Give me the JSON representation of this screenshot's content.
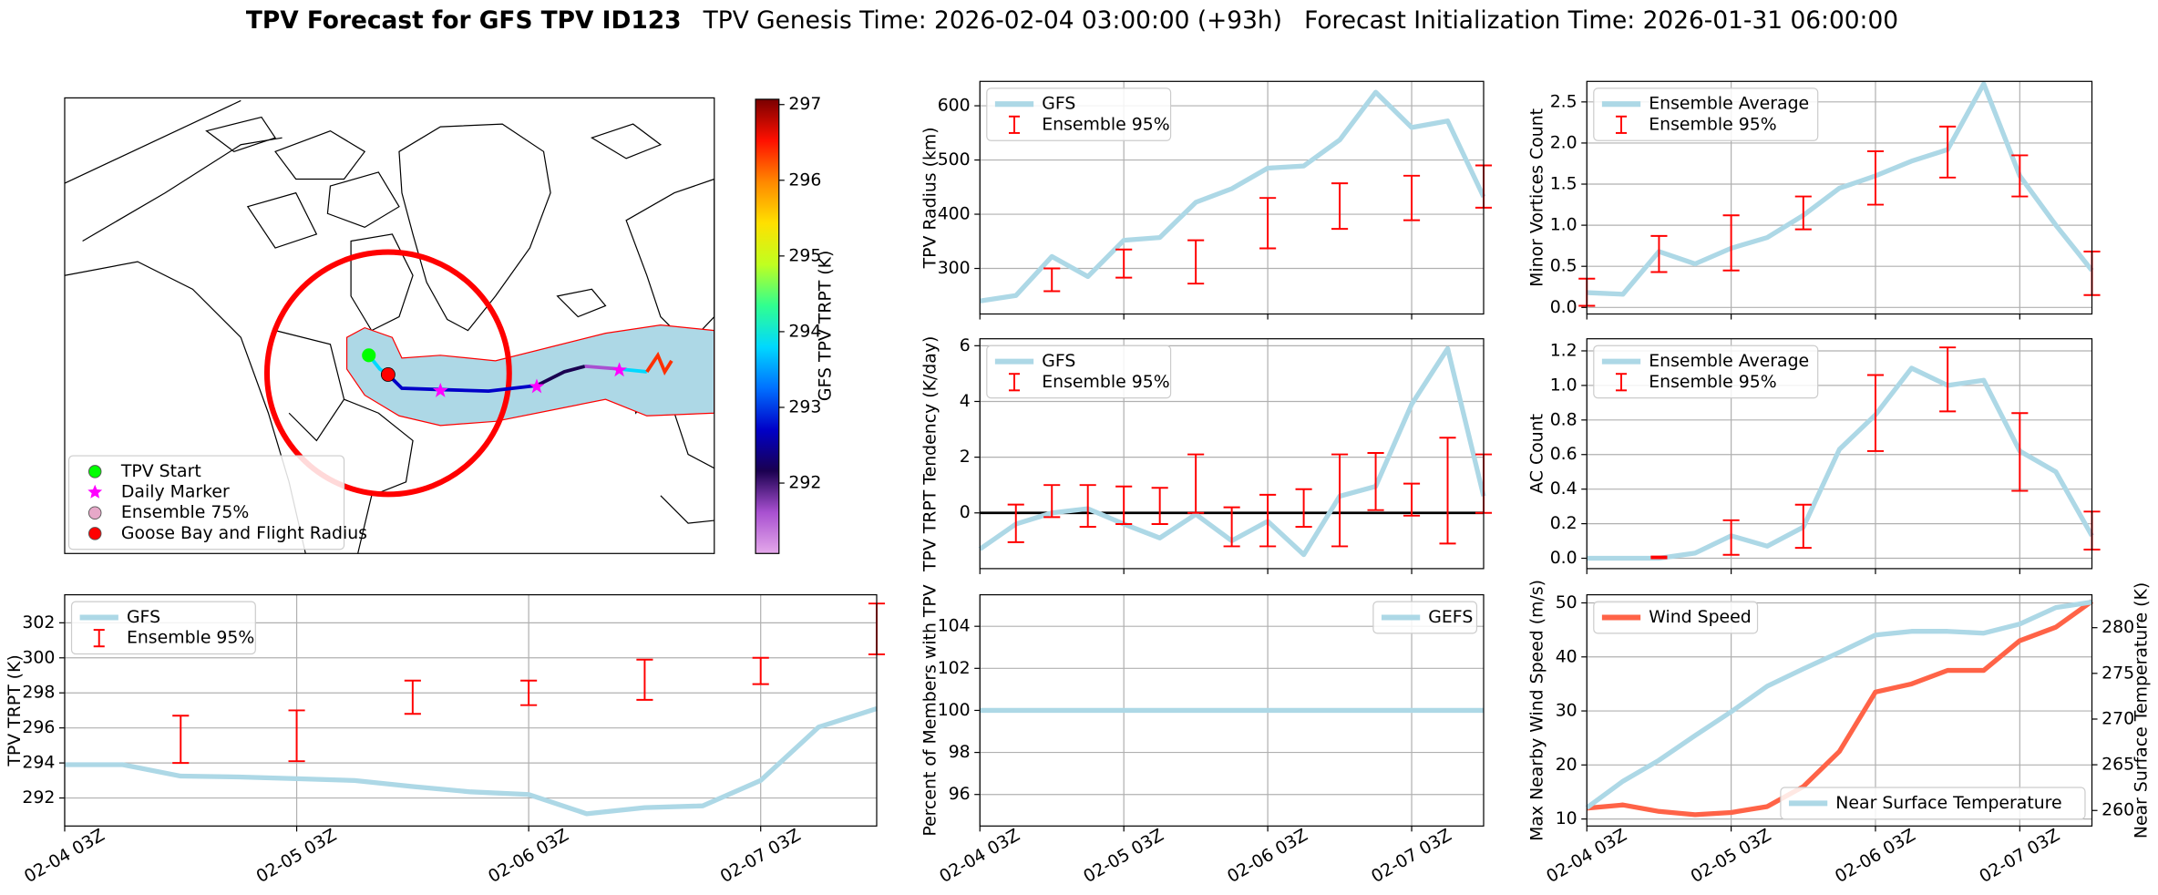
{
  "suptitle": {
    "title": "TPV Forecast for GFS TPV ID123",
    "genesis": "TPV Genesis Time: 2026-02-04 03:00:00 (+93h)",
    "init": "Forecast Initialization Time: 2026-01-31 06:00:00"
  },
  "chart_data": [
    {
      "type": "map",
      "legend": "lower left",
      "legend_entries": [
        {
          "label": "TPV Start",
          "color": "#00ff00",
          "marker": "o"
        },
        {
          "label": "Daily Marker",
          "color": "#ff00ff",
          "marker": "*"
        },
        {
          "label": "Ensemble 75%",
          "color": "#e6a8c8",
          "marker": "o"
        },
        {
          "label": "Goose Bay and Flight Radius",
          "color": "#ff0000",
          "marker": "o"
        }
      ],
      "colorbar": {
        "label": "GFS TPV TRPT (K)",
        "lim": [
          291.07,
          297.07
        ],
        "ticks": [
          292,
          293,
          294,
          295,
          296,
          297
        ],
        "colors": [
          "#e4a8ea",
          "#a850d0",
          "#1a0050",
          "#0000c8",
          "#0070ff",
          "#00d8ff",
          "#30ff90",
          "#c0ff20",
          "#ffe000",
          "#ff8800",
          "#ff1000",
          "#7a0000"
        ]
      }
    },
    {
      "type": "line",
      "ylabel": "TPV TRPT (K)",
      "categories": [
        "02-04 03Z",
        null,
        null,
        null,
        "02-05 03Z",
        null,
        null,
        null,
        "02-06 03Z",
        null,
        null,
        null,
        "02-07 03Z",
        null,
        null
      ],
      "series": [
        {
          "name": "GFS",
          "color": "#add8e6",
          "values": [
            293.9,
            293.9,
            293.25,
            293.2,
            293.1,
            293.0,
            292.65,
            292.35,
            292.2,
            291.1,
            291.45,
            291.55,
            293.0,
            296.05,
            297.1
          ]
        }
      ],
      "errorbars": {
        "name": "Ensemble 95%",
        "color": "#ff0000",
        "low": [
          null,
          null,
          294.0,
          null,
          294.1,
          null,
          296.8,
          null,
          297.3,
          null,
          297.6,
          null,
          298.5,
          null,
          300.2
        ],
        "high": [
          null,
          null,
          296.7,
          null,
          297.0,
          null,
          298.7,
          null,
          298.7,
          null,
          299.9,
          null,
          300.0,
          null,
          303.1
        ]
      },
      "ylim": [
        290.4,
        303.6
      ],
      "yticks": [
        292,
        294,
        296,
        298,
        300,
        302
      ],
      "grid": true,
      "legend": "upper left"
    },
    {
      "type": "line",
      "ylabel": "TPV Radius (km)",
      "sharex": 4,
      "series": [
        {
          "name": "GFS",
          "color": "#add8e6",
          "values": [
            240,
            250,
            322,
            285,
            352,
            357,
            422,
            447,
            485,
            489,
            537,
            625,
            560,
            572,
            432
          ]
        }
      ],
      "errorbars": {
        "name": "Ensemble 95%",
        "color": "#ff0000",
        "low": [
          null,
          null,
          258,
          null,
          283,
          null,
          272,
          null,
          337,
          null,
          373,
          null,
          389,
          null,
          412
        ],
        "high": [
          null,
          null,
          300,
          null,
          335,
          null,
          352,
          null,
          430,
          null,
          457,
          null,
          471,
          null,
          490
        ]
      },
      "ylim": [
        216,
        645
      ],
      "yticks": [
        300,
        400,
        500,
        600
      ],
      "grid": true,
      "legend": "upper left"
    },
    {
      "type": "line",
      "ylabel": "TPV TRPT Tendency (K/day)",
      "sharex": 4,
      "series": [
        {
          "name": "GFS",
          "color": "#add8e6",
          "values": [
            -1.3,
            -0.4,
            0.0,
            0.15,
            -0.4,
            -0.9,
            -0.05,
            -1.0,
            -0.3,
            -1.5,
            0.6,
            0.95,
            3.9,
            5.9,
            0.6
          ]
        }
      ],
      "errorbars": {
        "name": "Ensemble 95%",
        "color": "#ff0000",
        "low": [
          null,
          -1.05,
          -0.15,
          -0.5,
          -0.4,
          -0.4,
          0.0,
          -1.2,
          -1.2,
          -0.5,
          -1.2,
          0.1,
          -0.1,
          -1.1,
          0.0
        ],
        "high": [
          null,
          0.3,
          1.0,
          1.0,
          0.95,
          0.9,
          2.1,
          0.2,
          0.65,
          0.85,
          2.1,
          2.15,
          1.05,
          2.7,
          2.1
        ]
      },
      "reference_line": {
        "value": 0,
        "color": "#000000"
      },
      "ylim": [
        -2.0,
        6.25
      ],
      "yticks": [
        0,
        2,
        4,
        6
      ],
      "grid": true,
      "legend": "upper left"
    },
    {
      "type": "line",
      "ylabel": "Percent of Members with TPV",
      "categories": [
        "02-04 03Z",
        null,
        null,
        null,
        "02-05 03Z",
        null,
        null,
        null,
        "02-06 03Z",
        null,
        null,
        null,
        "02-07 03Z",
        null,
        null
      ],
      "series": [
        {
          "name": "GEFS",
          "color": "#add8e6",
          "values": [
            100,
            100,
            100,
            100,
            100,
            100,
            100,
            100,
            100,
            100,
            100,
            100,
            100,
            100,
            100
          ]
        }
      ],
      "ylim": [
        94.5,
        105.5
      ],
      "yticks": [
        96,
        98,
        100,
        102,
        104
      ],
      "grid": true,
      "legend": "upper right"
    },
    {
      "type": "line",
      "ylabel": "Minor Vortices Count",
      "sharex": 7,
      "series": [
        {
          "name": "Ensemble Average",
          "color": "#add8e6",
          "values": [
            0.18,
            0.16,
            0.68,
            0.53,
            0.72,
            0.85,
            1.12,
            1.45,
            1.6,
            1.78,
            1.92,
            2.72,
            1.6,
            1.0,
            0.45
          ]
        }
      ],
      "errorbars": {
        "name": "Ensemble 95%",
        "color": "#ff0000",
        "low": [
          0.02,
          null,
          0.43,
          null,
          0.45,
          null,
          0.95,
          null,
          1.25,
          null,
          1.58,
          null,
          1.35,
          null,
          0.15
        ],
        "high": [
          0.35,
          null,
          0.87,
          null,
          1.12,
          null,
          1.35,
          null,
          1.9,
          null,
          2.2,
          null,
          1.85,
          null,
          0.68
        ]
      },
      "ylim": [
        -0.08,
        2.75
      ],
      "yticks": [
        {
          "value": 0,
          "label": "0.0"
        },
        0.5,
        {
          "value": 1,
          "label": "1.0"
        },
        1.5,
        {
          "value": 2,
          "label": "2.0"
        },
        2.5
      ],
      "grid": true,
      "legend": "upper left"
    },
    {
      "type": "line",
      "ylabel": "AC Count",
      "sharex": 7,
      "series": [
        {
          "name": "Ensemble Average",
          "color": "#add8e6",
          "values": [
            0,
            0,
            0,
            0.03,
            0.13,
            0.07,
            0.18,
            0.63,
            0.83,
            1.1,
            1.0,
            1.03,
            0.62,
            0.5,
            0.13
          ]
        }
      ],
      "errorbars": {
        "name": "Ensemble 95%",
        "color": "#ff0000",
        "low": [
          null,
          null,
          0,
          null,
          0.02,
          null,
          0.06,
          null,
          0.62,
          null,
          0.85,
          null,
          0.39,
          null,
          0.05
        ],
        "high": [
          null,
          null,
          0.01,
          null,
          0.22,
          null,
          0.31,
          null,
          1.06,
          null,
          1.22,
          null,
          0.84,
          null,
          0.27
        ]
      },
      "ylim": [
        -0.06,
        1.27
      ],
      "yticks": [
        {
          "value": 0,
          "label": "0.0"
        },
        0.2,
        0.4,
        0.6,
        0.8,
        {
          "value": 1,
          "label": "1.0"
        },
        1.2
      ],
      "grid": true,
      "legend": "upper left"
    },
    {
      "type": "line",
      "ylabel": "Max Nearby Wind Speed (m/s)",
      "ylabel_color": "#ff6347",
      "y2label": "Near Surface Temperature (K)",
      "y2label_color": "#4169e1",
      "categories": [
        "02-04 03Z",
        null,
        null,
        null,
        "02-05 03Z",
        null,
        null,
        null,
        "02-06 03Z",
        null,
        null,
        null,
        "02-07 03Z",
        null,
        null
      ],
      "series": [
        {
          "name": "Wind Speed",
          "color": "#ff6347",
          "values": [
            12.0,
            12.6,
            11.4,
            10.8,
            11.2,
            12.3,
            16.0,
            22.5,
            33.5,
            35.0,
            37.5,
            37.5,
            43.0,
            45.5,
            50.3
          ]
        },
        {
          "name": "Near Surface Temperature",
          "color": "#add8e6",
          "axis": "y2",
          "values": [
            260.3,
            263.2,
            265.5,
            268.2,
            270.8,
            273.6,
            275.5,
            277.3,
            279.2,
            279.6,
            279.6,
            279.4,
            280.4,
            282.2,
            282.8
          ]
        }
      ],
      "ylim": [
        8.7,
        51.5
      ],
      "yticks": [
        10,
        20,
        30,
        40,
        50
      ],
      "y2lim": [
        258.3,
        283.6
      ],
      "y2ticks": [
        260,
        265,
        270,
        275,
        280
      ],
      "grid": true,
      "legend": "upper left",
      "legend2": "lower right"
    }
  ]
}
